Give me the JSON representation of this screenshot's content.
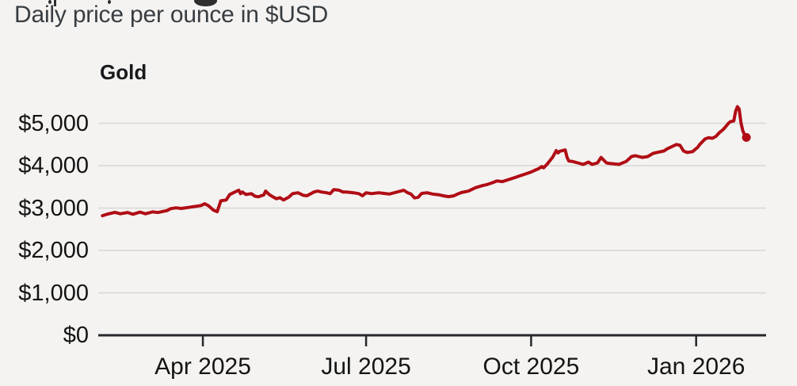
{
  "chart": {
    "subtitle": "Daily price per ounce in $USD",
    "series_label": "Gold"
  },
  "chart_data": {
    "type": "line",
    "title": "Gold",
    "subtitle": "Daily price per ounce in $USD",
    "unit": "$USD per ounce",
    "grid": true,
    "legend_position": "top-left-inline-label",
    "ylim": [
      0,
      5000
    ],
    "x_domain": [
      "2025-02-03",
      "2026-02-09"
    ],
    "y_ticks": [
      {
        "value": 0,
        "label": "$0"
      },
      {
        "value": 1000,
        "label": "$1,000"
      },
      {
        "value": 2000,
        "label": "$2,000"
      },
      {
        "value": 3000,
        "label": "$3,000"
      },
      {
        "value": 4000,
        "label": "$4,000"
      },
      {
        "value": 5000,
        "label": "$5,000"
      }
    ],
    "x_ticks": [
      {
        "date": "2025-04-01",
        "label": "Apr 2025"
      },
      {
        "date": "2025-07-01",
        "label": "Jul 2025"
      },
      {
        "date": "2025-10-01",
        "label": "Oct 2025"
      },
      {
        "date": "2026-01-01",
        "label": "Jan 2026"
      }
    ],
    "colors": {
      "line": "#b00d15",
      "grid": "#d8d6d3",
      "axis": "#26282b",
      "text": "#141414",
      "subtitle_text": "#383d42",
      "background": "#f4f3f1"
    },
    "end_marker": true,
    "series": [
      {
        "name": "Gold",
        "points": [
          [
            "2025-02-04",
            2820
          ],
          [
            "2025-02-07",
            2860
          ],
          [
            "2025-02-11",
            2900
          ],
          [
            "2025-02-14",
            2865
          ],
          [
            "2025-02-18",
            2895
          ],
          [
            "2025-02-21",
            2855
          ],
          [
            "2025-02-25",
            2905
          ],
          [
            "2025-02-28",
            2865
          ],
          [
            "2025-03-04",
            2910
          ],
          [
            "2025-03-07",
            2895
          ],
          [
            "2025-03-12",
            2940
          ],
          [
            "2025-03-14",
            2985
          ],
          [
            "2025-03-17",
            3005
          ],
          [
            "2025-03-20",
            2990
          ],
          [
            "2025-03-24",
            3015
          ],
          [
            "2025-03-28",
            3040
          ],
          [
            "2025-03-31",
            3060
          ],
          [
            "2025-04-02",
            3100
          ],
          [
            "2025-04-04",
            3060
          ],
          [
            "2025-04-07",
            2950
          ],
          [
            "2025-04-09",
            2915
          ],
          [
            "2025-04-11",
            3170
          ],
          [
            "2025-04-14",
            3190
          ],
          [
            "2025-04-16",
            3320
          ],
          [
            "2025-04-18",
            3360
          ],
          [
            "2025-04-21",
            3420
          ],
          [
            "2025-04-22",
            3340
          ],
          [
            "2025-04-23",
            3380
          ],
          [
            "2025-04-25",
            3320
          ],
          [
            "2025-04-28",
            3340
          ],
          [
            "2025-04-30",
            3280
          ],
          [
            "2025-05-02",
            3265
          ],
          [
            "2025-05-05",
            3310
          ],
          [
            "2025-05-06",
            3400
          ],
          [
            "2025-05-08",
            3320
          ],
          [
            "2025-05-10",
            3265
          ],
          [
            "2025-05-12",
            3220
          ],
          [
            "2025-05-14",
            3245
          ],
          [
            "2025-05-16",
            3190
          ],
          [
            "2025-05-19",
            3260
          ],
          [
            "2025-05-21",
            3340
          ],
          [
            "2025-05-24",
            3360
          ],
          [
            "2025-05-27",
            3300
          ],
          [
            "2025-05-29",
            3290
          ],
          [
            "2025-06-02",
            3380
          ],
          [
            "2025-06-04",
            3400
          ],
          [
            "2025-06-06",
            3380
          ],
          [
            "2025-06-09",
            3360
          ],
          [
            "2025-06-11",
            3340
          ],
          [
            "2025-06-13",
            3435
          ],
          [
            "2025-06-16",
            3420
          ],
          [
            "2025-06-18",
            3380
          ],
          [
            "2025-06-20",
            3380
          ],
          [
            "2025-06-24",
            3360
          ],
          [
            "2025-06-27",
            3340
          ],
          [
            "2025-06-29",
            3290
          ],
          [
            "2025-07-01",
            3360
          ],
          [
            "2025-07-04",
            3340
          ],
          [
            "2025-07-08",
            3360
          ],
          [
            "2025-07-11",
            3345
          ],
          [
            "2025-07-14",
            3330
          ],
          [
            "2025-07-17",
            3365
          ],
          [
            "2025-07-22",
            3420
          ],
          [
            "2025-07-24",
            3365
          ],
          [
            "2025-07-26",
            3330
          ],
          [
            "2025-07-28",
            3240
          ],
          [
            "2025-07-30",
            3255
          ],
          [
            "2025-08-01",
            3345
          ],
          [
            "2025-08-04",
            3360
          ],
          [
            "2025-08-07",
            3330
          ],
          [
            "2025-08-11",
            3310
          ],
          [
            "2025-08-13",
            3290
          ],
          [
            "2025-08-16",
            3270
          ],
          [
            "2025-08-19",
            3290
          ],
          [
            "2025-08-21",
            3330
          ],
          [
            "2025-08-23",
            3365
          ],
          [
            "2025-08-27",
            3400
          ],
          [
            "2025-08-31",
            3480
          ],
          [
            "2025-09-04",
            3530
          ],
          [
            "2025-09-06",
            3550
          ],
          [
            "2025-09-09",
            3590
          ],
          [
            "2025-09-12",
            3640
          ],
          [
            "2025-09-15",
            3625
          ],
          [
            "2025-09-18",
            3665
          ],
          [
            "2025-09-22",
            3720
          ],
          [
            "2025-09-25",
            3765
          ],
          [
            "2025-09-29",
            3820
          ],
          [
            "2025-10-01",
            3850
          ],
          [
            "2025-10-03",
            3890
          ],
          [
            "2025-10-05",
            3925
          ],
          [
            "2025-10-07",
            3980
          ],
          [
            "2025-10-08",
            3950
          ],
          [
            "2025-10-10",
            4040
          ],
          [
            "2025-10-13",
            4200
          ],
          [
            "2025-10-15",
            4355
          ],
          [
            "2025-10-16",
            4300
          ],
          [
            "2025-10-17",
            4340
          ],
          [
            "2025-10-20",
            4370
          ],
          [
            "2025-10-21",
            4200
          ],
          [
            "2025-10-22",
            4110
          ],
          [
            "2025-10-24",
            4100
          ],
          [
            "2025-10-27",
            4065
          ],
          [
            "2025-10-30",
            4030
          ],
          [
            "2025-11-02",
            4085
          ],
          [
            "2025-11-04",
            4030
          ],
          [
            "2025-11-07",
            4065
          ],
          [
            "2025-11-09",
            4195
          ],
          [
            "2025-11-12",
            4065
          ],
          [
            "2025-11-14",
            4050
          ],
          [
            "2025-11-19",
            4030
          ],
          [
            "2025-11-23",
            4100
          ],
          [
            "2025-11-26",
            4215
          ],
          [
            "2025-11-28",
            4235
          ],
          [
            "2025-12-02",
            4195
          ],
          [
            "2025-12-05",
            4215
          ],
          [
            "2025-12-08",
            4290
          ],
          [
            "2025-12-10",
            4310
          ],
          [
            "2025-12-14",
            4345
          ],
          [
            "2025-12-16",
            4400
          ],
          [
            "2025-12-19",
            4460
          ],
          [
            "2025-12-21",
            4500
          ],
          [
            "2025-12-23",
            4480
          ],
          [
            "2025-12-25",
            4345
          ],
          [
            "2025-12-27",
            4310
          ],
          [
            "2025-12-30",
            4330
          ],
          [
            "2026-01-02",
            4440
          ],
          [
            "2026-01-03",
            4500
          ],
          [
            "2026-01-06",
            4630
          ],
          [
            "2026-01-08",
            4660
          ],
          [
            "2026-01-10",
            4645
          ],
          [
            "2026-01-12",
            4690
          ],
          [
            "2026-01-14",
            4780
          ],
          [
            "2026-01-16",
            4850
          ],
          [
            "2026-01-18",
            4945
          ],
          [
            "2026-01-19",
            5000
          ],
          [
            "2026-01-20",
            5035
          ],
          [
            "2026-01-22",
            5055
          ],
          [
            "2026-01-23",
            5280
          ],
          [
            "2026-01-24",
            5390
          ],
          [
            "2026-01-25",
            5335
          ],
          [
            "2026-01-26",
            5010
          ],
          [
            "2026-01-27",
            4820
          ],
          [
            "2026-01-28",
            4730
          ],
          [
            "2026-01-29",
            4665
          ]
        ]
      }
    ]
  }
}
